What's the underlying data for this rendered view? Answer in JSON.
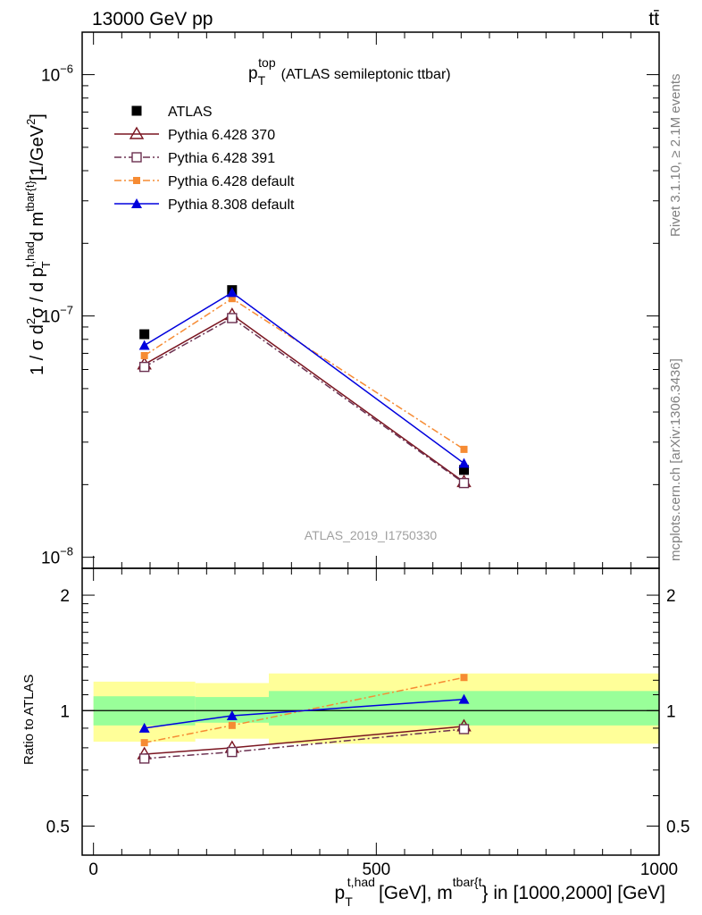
{
  "header": {
    "left": "13000 GeV pp",
    "right": "tt̄"
  },
  "side_labels": {
    "rivet": "Rivet 3.1.10, ≥ 2.1M events",
    "mcplots": "mcplots.cern.ch [arXiv:1306.3436]"
  },
  "watermark": "ATLAS_2019_I1750330",
  "chart_data": [
    {
      "type": "line",
      "panel": "main",
      "title": "p_T^top (ATLAS semileptonic ttbar)",
      "title_parts": {
        "p": "p",
        "sub": "T",
        "sup": "top",
        "rest": "(ATLAS semileptonic ttbar)"
      },
      "ylabel": "1 / σ d²σ / d p_T^{t,had} d m^{tbar{t}} [1/GeV²]",
      "ylabel_parts": {
        "a": "1 / σ d",
        "a_sup": "2",
        "b": "σ / d p",
        "b_sup": "t,had",
        "b_sub": "T",
        "c": "d m",
        "c_sup": "tbar{t}",
        "d": "[1/GeV",
        "d_sup": "2",
        "e": "]"
      },
      "yscale": "log",
      "ylim": [
        9e-09,
        1.5e-06
      ],
      "xlim": [
        -20,
        1000
      ],
      "y_ticks": [
        {
          "base": "10",
          "exp": "−8",
          "value": 1e-08
        },
        {
          "base": "10",
          "exp": "−7",
          "value": 1e-07
        },
        {
          "base": "10",
          "exp": "−6",
          "value": 1e-06
        }
      ],
      "series": [
        {
          "name": "ATLAS",
          "color": "#000000",
          "marker": "square",
          "line": "none",
          "x": [
            90,
            245,
            655
          ],
          "y": [
            8.4e-08,
            1.28e-07,
            2.3e-08
          ]
        },
        {
          "name": "Pythia 6.428 370",
          "color": "#7a1520",
          "marker": "triangle-open",
          "line": "solid",
          "x": [
            90,
            245,
            655
          ],
          "y": [
            6.3e-08,
            1.01e-07,
            2.05e-08
          ]
        },
        {
          "name": "Pythia 6.428 391",
          "color": "#6b3050",
          "marker": "square-open",
          "line": "dashdot",
          "x": [
            90,
            245,
            655
          ],
          "y": [
            6.15e-08,
            9.8e-08,
            2.03e-08
          ]
        },
        {
          "name": "Pythia 6.428 default",
          "color": "#f68b33",
          "marker": "square-small",
          "line": "dashdot",
          "x": [
            90,
            245,
            655
          ],
          "y": [
            6.85e-08,
            1.18e-07,
            2.8e-08
          ]
        },
        {
          "name": "Pythia 8.308 default",
          "color": "#0000dd",
          "marker": "triangle",
          "line": "solid",
          "x": [
            90,
            245,
            655
          ],
          "y": [
            7.55e-08,
            1.25e-07,
            2.45e-08
          ]
        }
      ]
    },
    {
      "type": "line",
      "panel": "ratio",
      "ylabel": "Ratio to ATLAS",
      "yscale": "log",
      "ylim": [
        0.42,
        2.35
      ],
      "xlim": [
        -20,
        1000
      ],
      "xlabel": "p_T^{t,had} [GeV], m^{tbar{t}} in [1000,2000] [GeV]",
      "xlabel_parts": {
        "p": "p",
        "sub": "T",
        "sup": "t,had",
        "mid": "[GeV], m",
        "sup2": "tbar{t",
        "end": "} in [1000,2000] [GeV]"
      },
      "x_ticks": [
        {
          "label": "0",
          "value": 0
        },
        {
          "label": "500",
          "value": 500
        },
        {
          "label": "1000",
          "value": 1000
        }
      ],
      "y_ticks": [
        {
          "label": "0.5",
          "value": 0.5
        },
        {
          "label": "1",
          "value": 1
        },
        {
          "label": "2",
          "value": 2
        }
      ],
      "bands": [
        {
          "x0": 0,
          "x1": 180,
          "inner": [
            0.915,
            1.09
          ],
          "outer": [
            0.83,
            1.19
          ],
          "inner_color": "#99ff99",
          "outer_color": "#ffff99"
        },
        {
          "x0": 180,
          "x1": 310,
          "inner": [
            0.93,
            1.085
          ],
          "outer": [
            0.845,
            1.18
          ],
          "outer_color": "#ffff99",
          "inner_color": "#99ff99"
        },
        {
          "x0": 310,
          "x1": 1000,
          "inner": [
            0.915,
            1.125
          ],
          "outer": [
            0.82,
            1.25
          ],
          "outer_color": "#ffff99",
          "inner_color": "#99ff99"
        }
      ],
      "series": [
        {
          "name": "Pythia 6.428 370",
          "x": [
            90,
            245,
            655
          ],
          "y": [
            0.77,
            0.8,
            0.91
          ]
        },
        {
          "name": "Pythia 6.428 391",
          "x": [
            90,
            245,
            655
          ],
          "y": [
            0.75,
            0.78,
            0.895
          ]
        },
        {
          "name": "Pythia 6.428 default",
          "x": [
            90,
            245,
            655
          ],
          "y": [
            0.825,
            0.915,
            1.22
          ]
        },
        {
          "name": "Pythia 8.308 default",
          "x": [
            90,
            245,
            655
          ],
          "y": [
            0.9,
            0.97,
            1.07
          ]
        }
      ]
    }
  ]
}
